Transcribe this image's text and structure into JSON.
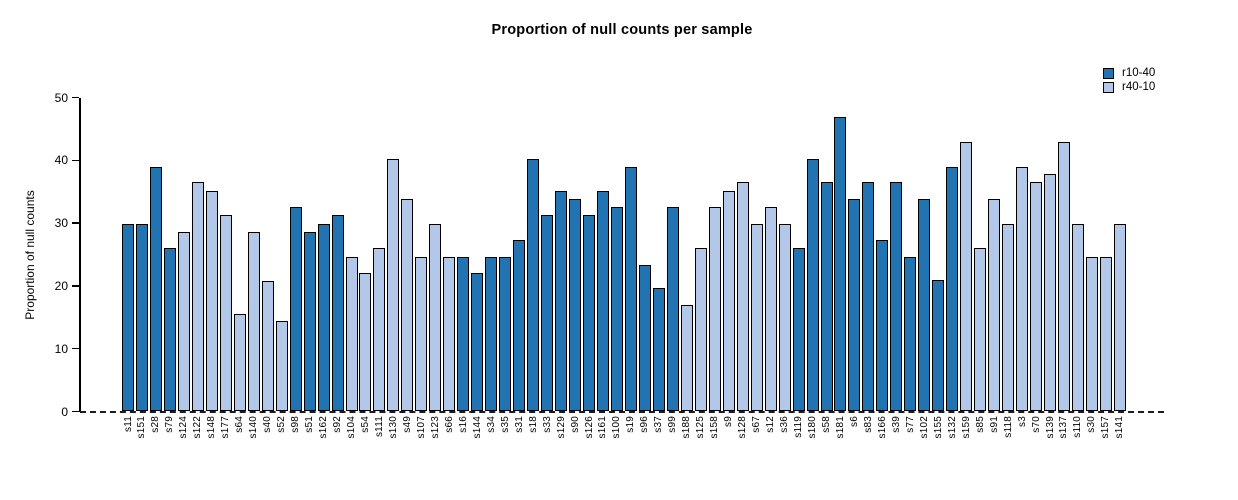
{
  "chart_data": {
    "type": "bar",
    "title": "Proportion of null counts per sample",
    "xlabel": "",
    "ylabel": "Proportion of null counts",
    "ylim": [
      0,
      50
    ],
    "yticks": [
      0,
      10,
      20,
      30,
      40,
      50
    ],
    "grid": false,
    "legend_position": "top-right",
    "baseline_style": "dashed",
    "axis_color": "#000000",
    "series": [
      {
        "name": "r10-40",
        "color": "#2273B1"
      },
      {
        "name": "r40-10",
        "color": "#B3C8E8"
      }
    ],
    "samples": [
      {
        "label": "s11",
        "value": 29.9,
        "series": "r10-40"
      },
      {
        "label": "s151",
        "value": 29.9,
        "series": "r10-40"
      },
      {
        "label": "s28",
        "value": 39.0,
        "series": "r10-40"
      },
      {
        "label": "s79",
        "value": 26.0,
        "series": "r10-40"
      },
      {
        "label": "s124",
        "value": 28.6,
        "series": "r40-10"
      },
      {
        "label": "s122",
        "value": 36.5,
        "series": "r40-10"
      },
      {
        "label": "s148",
        "value": 35.1,
        "series": "r40-10"
      },
      {
        "label": "s177",
        "value": 31.3,
        "series": "r40-10"
      },
      {
        "label": "s64",
        "value": 15.6,
        "series": "r40-10"
      },
      {
        "label": "s140",
        "value": 28.6,
        "series": "r40-10"
      },
      {
        "label": "s40",
        "value": 20.8,
        "series": "r40-10"
      },
      {
        "label": "s52",
        "value": 14.4,
        "series": "r40-10"
      },
      {
        "label": "s98",
        "value": 32.5,
        "series": "r10-40"
      },
      {
        "label": "s51",
        "value": 28.6,
        "series": "r10-40"
      },
      {
        "label": "s162",
        "value": 29.9,
        "series": "r10-40"
      },
      {
        "label": "s92",
        "value": 31.3,
        "series": "r10-40"
      },
      {
        "label": "s104",
        "value": 24.6,
        "series": "r40-10"
      },
      {
        "label": "s54",
        "value": 22.1,
        "series": "r40-10"
      },
      {
        "label": "s111",
        "value": 26.1,
        "series": "r40-10"
      },
      {
        "label": "s130",
        "value": 40.2,
        "series": "r40-10"
      },
      {
        "label": "s49",
        "value": 33.8,
        "series": "r40-10"
      },
      {
        "label": "s107",
        "value": 24.6,
        "series": "r40-10"
      },
      {
        "label": "s123",
        "value": 29.9,
        "series": "r40-10"
      },
      {
        "label": "s66",
        "value": 24.6,
        "series": "r40-10"
      },
      {
        "label": "s16",
        "value": 24.6,
        "series": "r10-40"
      },
      {
        "label": "s144",
        "value": 22.1,
        "series": "r10-40"
      },
      {
        "label": "s34",
        "value": 24.6,
        "series": "r10-40"
      },
      {
        "label": "s35",
        "value": 24.6,
        "series": "r10-40"
      },
      {
        "label": "s31",
        "value": 27.3,
        "series": "r10-40"
      },
      {
        "label": "s18",
        "value": 40.2,
        "series": "r10-40"
      },
      {
        "label": "s33",
        "value": 31.3,
        "series": "r10-40"
      },
      {
        "label": "s129",
        "value": 35.1,
        "series": "r10-40"
      },
      {
        "label": "s90",
        "value": 33.8,
        "series": "r10-40"
      },
      {
        "label": "s126",
        "value": 31.3,
        "series": "r10-40"
      },
      {
        "label": "s161",
        "value": 35.1,
        "series": "r10-40"
      },
      {
        "label": "s100",
        "value": 32.5,
        "series": "r10-40"
      },
      {
        "label": "s19",
        "value": 39.0,
        "series": "r10-40"
      },
      {
        "label": "s96",
        "value": 23.4,
        "series": "r10-40"
      },
      {
        "label": "s37",
        "value": 19.6,
        "series": "r10-40"
      },
      {
        "label": "s99",
        "value": 32.5,
        "series": "r10-40"
      },
      {
        "label": "s188",
        "value": 16.9,
        "series": "r40-10"
      },
      {
        "label": "s125",
        "value": 26.1,
        "series": "r40-10"
      },
      {
        "label": "s158",
        "value": 32.5,
        "series": "r40-10"
      },
      {
        "label": "s9",
        "value": 35.1,
        "series": "r40-10"
      },
      {
        "label": "s128",
        "value": 36.5,
        "series": "r40-10"
      },
      {
        "label": "s67",
        "value": 29.9,
        "series": "r40-10"
      },
      {
        "label": "s12",
        "value": 32.5,
        "series": "r40-10"
      },
      {
        "label": "s36",
        "value": 29.9,
        "series": "r40-10"
      },
      {
        "label": "s119",
        "value": 26.1,
        "series": "r10-40"
      },
      {
        "label": "s180",
        "value": 40.2,
        "series": "r10-40"
      },
      {
        "label": "s58",
        "value": 36.5,
        "series": "r10-40"
      },
      {
        "label": "s181",
        "value": 46.9,
        "series": "r10-40"
      },
      {
        "label": "s6",
        "value": 33.8,
        "series": "r10-40"
      },
      {
        "label": "s83",
        "value": 36.5,
        "series": "r10-40"
      },
      {
        "label": "s166",
        "value": 27.3,
        "series": "r10-40"
      },
      {
        "label": "s39",
        "value": 36.5,
        "series": "r10-40"
      },
      {
        "label": "s77",
        "value": 24.6,
        "series": "r10-40"
      },
      {
        "label": "s102",
        "value": 33.8,
        "series": "r10-40"
      },
      {
        "label": "s155",
        "value": 21.0,
        "series": "r10-40"
      },
      {
        "label": "s132",
        "value": 39.0,
        "series": "r10-40"
      },
      {
        "label": "s159",
        "value": 42.9,
        "series": "r40-10"
      },
      {
        "label": "s85",
        "value": 26.1,
        "series": "r40-10"
      },
      {
        "label": "s91",
        "value": 33.8,
        "series": "r40-10"
      },
      {
        "label": "s118",
        "value": 29.9,
        "series": "r40-10"
      },
      {
        "label": "s3",
        "value": 39.0,
        "series": "r40-10"
      },
      {
        "label": "s70",
        "value": 36.5,
        "series": "r40-10"
      },
      {
        "label": "s139",
        "value": 37.8,
        "series": "r40-10"
      },
      {
        "label": "s137",
        "value": 42.9,
        "series": "r40-10"
      },
      {
        "label": "s110",
        "value": 29.9,
        "series": "r40-10"
      },
      {
        "label": "s30",
        "value": 24.6,
        "series": "r40-10"
      },
      {
        "label": "s157",
        "value": 24.6,
        "series": "r40-10"
      },
      {
        "label": "s141",
        "value": 29.9,
        "series": "r40-10"
      }
    ]
  }
}
